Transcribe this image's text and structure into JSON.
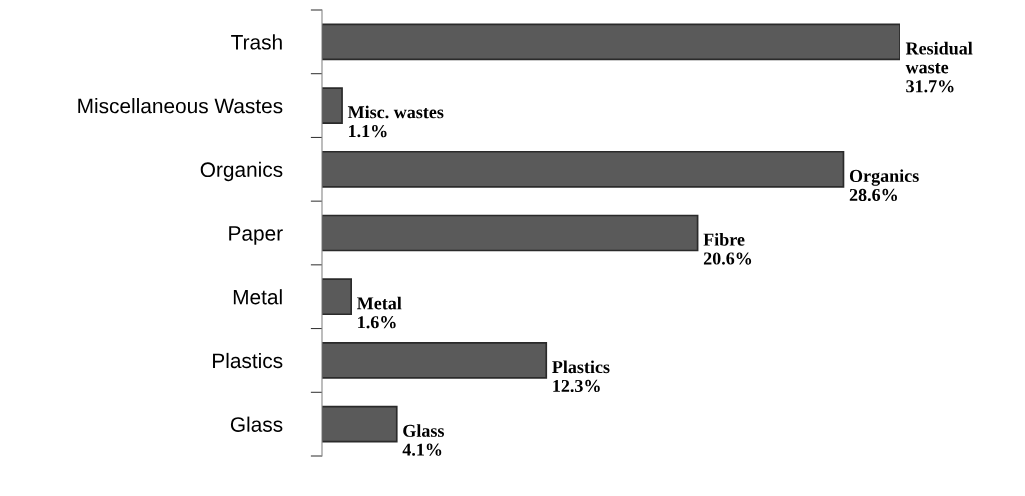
{
  "chart_data": {
    "type": "bar",
    "orientation": "horizontal",
    "categories": [
      "Trash",
      "Miscellaneous Wastes",
      "Organics",
      "Paper",
      "Metal",
      "Plastics",
      "Glass"
    ],
    "values": [
      31.7,
      1.1,
      28.6,
      20.6,
      1.6,
      12.3,
      4.1
    ],
    "value_labels": [
      "Residual\nwaste\n31.7%",
      "Misc. wastes\n1.1%",
      "Organics\n28.6%",
      "Fibre\n20.6%",
      "Metal\n1.6%",
      "Plastics\n12.3%",
      "Glass\n4.1%"
    ],
    "color": "#5a5a5a",
    "grid": false,
    "legend": false
  }
}
